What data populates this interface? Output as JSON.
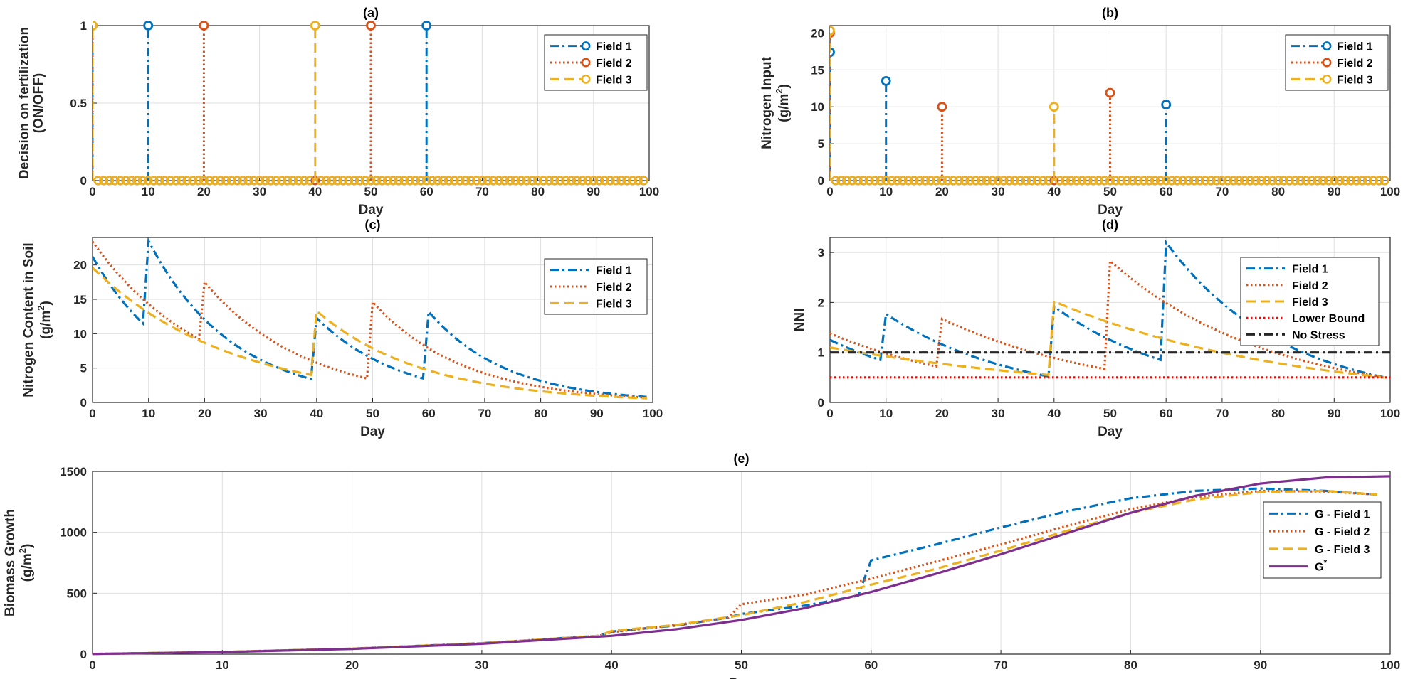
{
  "colors": {
    "field1": "#0072BD",
    "field2": "#D95319",
    "field3": "#EDB120",
    "gstar": "#7E2F8E",
    "lower": "#FF0000",
    "nostress": "#262626"
  },
  "chart_data": [
    {
      "id": "a",
      "type": "stem",
      "title": "(a)",
      "xlabel": "Day",
      "ylabel_lines": [
        "Decision on fertilization",
        "(ON/OFF)"
      ],
      "xlim": [
        0,
        100
      ],
      "ylim": [
        0,
        1
      ],
      "xticks": [
        "0",
        "10",
        "20",
        "30",
        "40",
        "50",
        "60",
        "70",
        "80",
        "90",
        "100"
      ],
      "yticks": [
        "0",
        "0.5",
        "1"
      ],
      "legend_position": "top-right",
      "series": [
        {
          "name": "Field 1",
          "style": "dashdot",
          "color": "#0072BD",
          "x_range": [
            0,
            99
          ],
          "baseline": 0,
          "events": [
            [
              0,
              1
            ],
            [
              10,
              1
            ],
            [
              60,
              1
            ]
          ]
        },
        {
          "name": "Field 2",
          "style": "dotted",
          "color": "#D95319",
          "x_range": [
            0,
            99
          ],
          "baseline": 0,
          "events": [
            [
              0,
              1
            ],
            [
              20,
              1
            ],
            [
              50,
              1
            ]
          ]
        },
        {
          "name": "Field 3",
          "style": "dashed",
          "color": "#EDB120",
          "x_range": [
            0,
            99
          ],
          "baseline": 0,
          "events": [
            [
              0,
              1
            ],
            [
              40,
              1
            ]
          ]
        }
      ]
    },
    {
      "id": "b",
      "type": "stem",
      "title": "(b)",
      "xlabel": "Day",
      "ylabel_lines": [
        "Nitrogen Input",
        "(g/m",
        "2",
        ")"
      ],
      "xlim": [
        0,
        100
      ],
      "ylim": [
        0,
        21
      ],
      "xticks": [
        "0",
        "10",
        "20",
        "30",
        "40",
        "50",
        "60",
        "70",
        "80",
        "90",
        "100"
      ],
      "yticks": [
        "0",
        "5",
        "10",
        "15",
        "20"
      ],
      "legend_position": "top-right",
      "series": [
        {
          "name": "Field 1",
          "style": "dashdot",
          "color": "#0072BD",
          "x_range": [
            0,
            99
          ],
          "baseline": 0,
          "events": [
            [
              0,
              17.4
            ],
            [
              10,
              13.5
            ],
            [
              60,
              10.3
            ]
          ]
        },
        {
          "name": "Field 2",
          "style": "dotted",
          "color": "#D95319",
          "x_range": [
            0,
            99
          ],
          "baseline": 0,
          "events": [
            [
              0,
              20
            ],
            [
              20,
              10
            ],
            [
              50,
              11.9
            ]
          ]
        },
        {
          "name": "Field 3",
          "style": "dashed",
          "color": "#EDB120",
          "x_range": [
            0,
            99
          ],
          "baseline": 0,
          "events": [
            [
              0,
              20.3
            ],
            [
              40,
              10
            ]
          ]
        }
      ]
    },
    {
      "id": "c",
      "type": "line",
      "title": "(c)",
      "xlabel": "Day",
      "ylabel_lines": [
        "Nitrogen Content in Soil",
        "(g/m",
        "2",
        ")"
      ],
      "xlim": [
        0,
        100
      ],
      "ylim": [
        0,
        24
      ],
      "xticks": [
        "0",
        "10",
        "20",
        "30",
        "40",
        "50",
        "60",
        "70",
        "80",
        "90",
        "100"
      ],
      "yticks": [
        "0",
        "5",
        "10",
        "15",
        "20"
      ],
      "legend_position": "top-right",
      "series": [
        {
          "name": "Field 1",
          "style": "dashdot",
          "color": "#0072BD",
          "segments": [
            {
              "start": [
                0,
                21.2
              ],
              "end": [
                9,
                11.5
              ]
            },
            {
              "start": [
                10,
                23.5
              ],
              "end": [
                39,
                3.4
              ]
            },
            {
              "start": [
                40,
                12.3
              ],
              "end": [
                59,
                3.5
              ]
            },
            {
              "start": [
                60,
                13.2
              ],
              "end": [
                99,
                0.8
              ]
            }
          ]
        },
        {
          "name": "Field 2",
          "style": "dotted",
          "color": "#D95319",
          "segments": [
            {
              "start": [
                0,
                23.4
              ],
              "end": [
                19,
                9.2
              ]
            },
            {
              "start": [
                20,
                17.5
              ],
              "end": [
                49,
                3.5
              ]
            },
            {
              "start": [
                50,
                14.6
              ],
              "end": [
                99,
                0.7
              ]
            }
          ]
        },
        {
          "name": "Field 3",
          "style": "dashed",
          "color": "#EDB120",
          "segments": [
            {
              "start": [
                0,
                19.6
              ],
              "end": [
                39,
                4.0
              ]
            },
            {
              "start": [
                40,
                13.3
              ],
              "end": [
                99,
                0.6
              ]
            }
          ]
        }
      ]
    },
    {
      "id": "d",
      "type": "line",
      "title": "(d)",
      "xlabel": "Day",
      "ylabel_lines": [
        "NNI"
      ],
      "xlim": [
        0,
        100
      ],
      "ylim": [
        0,
        3.3
      ],
      "xticks": [
        "0",
        "10",
        "20",
        "30",
        "40",
        "50",
        "60",
        "70",
        "80",
        "90",
        "100"
      ],
      "yticks": [
        "0",
        "1",
        "2",
        "3"
      ],
      "legend_position": "top-right",
      "series": [
        {
          "name": "Field 1",
          "style": "dashdot",
          "color": "#0072BD",
          "segments": [
            {
              "start": [
                0,
                1.25
              ],
              "end": [
                9,
                0.85
              ]
            },
            {
              "start": [
                10,
                1.77
              ],
              "end": [
                39,
                0.52
              ]
            },
            {
              "start": [
                40,
                1.92
              ],
              "end": [
                59,
                0.85
              ]
            },
            {
              "start": [
                60,
                3.2
              ],
              "end": [
                99,
                0.5
              ]
            }
          ]
        },
        {
          "name": "Field 2",
          "style": "dotted",
          "color": "#D95319",
          "segments": [
            {
              "start": [
                0,
                1.38
              ],
              "end": [
                19,
                0.72
              ]
            },
            {
              "start": [
                20,
                1.67
              ],
              "end": [
                49,
                0.67
              ]
            },
            {
              "start": [
                50,
                2.83
              ],
              "end": [
                99,
                0.5
              ]
            }
          ]
        },
        {
          "name": "Field 3",
          "style": "dashed",
          "color": "#EDB120",
          "segments": [
            {
              "start": [
                0,
                1.1
              ],
              "end": [
                39,
                0.55
              ]
            },
            {
              "start": [
                40,
                2.02
              ],
              "end": [
                99,
                0.5
              ]
            }
          ]
        },
        {
          "name": "Lower Bound",
          "style": "dotted",
          "color": "#FF0000",
          "segments": [
            {
              "start": [
                0,
                0.5
              ],
              "end": [
                100,
                0.5
              ]
            }
          ],
          "linear": true
        },
        {
          "name": "No Stress",
          "style": "dashdot",
          "color": "#262626",
          "segments": [
            {
              "start": [
                0,
                1.0
              ],
              "end": [
                100,
                1.0
              ]
            }
          ],
          "linear": true
        }
      ]
    },
    {
      "id": "e",
      "type": "line",
      "title": "(e)",
      "xlabel": "Day",
      "ylabel_lines": [
        "Biomass Growth",
        "(g/m",
        "2",
        ")"
      ],
      "xlim": [
        0,
        100
      ],
      "ylim": [
        0,
        1500
      ],
      "xticks": [
        "0",
        "10",
        "20",
        "30",
        "40",
        "50",
        "60",
        "70",
        "80",
        "90",
        "100"
      ],
      "yticks": [
        "0",
        "500",
        "1000",
        "1500"
      ],
      "legend_position": "right",
      "series": [
        {
          "name": "G - Field 1",
          "style": "dashdot",
          "color": "#0072BD",
          "x": [
            0,
            10,
            20,
            30,
            39,
            40,
            45,
            49,
            50,
            55,
            59,
            60,
            65,
            70,
            75,
            80,
            85,
            90,
            95,
            99
          ],
          "y": [
            2,
            18,
            45,
            90,
            150,
            185,
            235,
            300,
            330,
            400,
            480,
            770,
            900,
            1040,
            1170,
            1280,
            1340,
            1360,
            1340,
            1310
          ]
        },
        {
          "name": "G - Field 2",
          "style": "dotted",
          "color": "#D95319",
          "x": [
            0,
            10,
            20,
            30,
            39,
            40,
            45,
            49,
            50,
            55,
            60,
            65,
            70,
            75,
            80,
            85,
            90,
            95,
            99
          ],
          "y": [
            2,
            18,
            45,
            90,
            150,
            180,
            240,
            300,
            410,
            490,
            620,
            760,
            900,
            1050,
            1190,
            1290,
            1340,
            1335,
            1310
          ]
        },
        {
          "name": "G - Field 3",
          "style": "dashed",
          "color": "#EDB120",
          "x": [
            0,
            10,
            20,
            30,
            39,
            40,
            45,
            50,
            55,
            60,
            65,
            70,
            75,
            80,
            85,
            90,
            95,
            99
          ],
          "y": [
            2,
            18,
            45,
            90,
            150,
            190,
            240,
            320,
            430,
            570,
            700,
            850,
            1010,
            1160,
            1270,
            1330,
            1340,
            1310
          ]
        },
        {
          "name": "G*",
          "style": "solid",
          "color": "#7E2F8E",
          "x": [
            0,
            10,
            20,
            30,
            40,
            45,
            50,
            55,
            60,
            65,
            70,
            75,
            80,
            85,
            90,
            95,
            100
          ],
          "y": [
            2,
            17,
            43,
            85,
            150,
            205,
            280,
            380,
            510,
            660,
            820,
            990,
            1160,
            1300,
            1400,
            1450,
            1460
          ]
        }
      ]
    }
  ]
}
